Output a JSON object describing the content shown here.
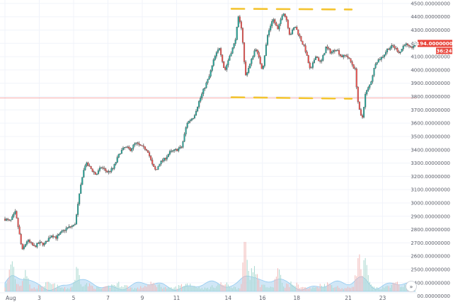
{
  "chart_data": {
    "type": "candlestick",
    "y_axis": {
      "range": [
        2320,
        4520
      ],
      "ticks": [
        "4500.00000000",
        "4400.00000000",
        "4300.00000000",
        "4200.00000000",
        "4100.00000000",
        "4000.00000000",
        "3900.00000000",
        "3800.00000000",
        "3700.00000000",
        "3600.00000000",
        "3500.00000000",
        "3400.00000000",
        "3300.00000000",
        "3200.00000000",
        "3100.00000000",
        "3000.00000000",
        "2900.00000000",
        "2800.00000000",
        "2700.00000000",
        "2600.00000000",
        "2500.00000000",
        "2400.00000000",
        "2300.00000000"
      ],
      "tick_values": [
        4500,
        4400,
        4300,
        4200,
        4100,
        4000,
        3900,
        3800,
        3700,
        3600,
        3500,
        3400,
        3300,
        3200,
        3100,
        3000,
        2900,
        2800,
        2700,
        2600,
        2500,
        2400,
        2300
      ]
    },
    "x_axis": {
      "ticks": [
        "Aug",
        "3",
        "5",
        "7",
        "9",
        "11",
        "14",
        "16",
        "18",
        "21",
        "23"
      ],
      "day_index": [
        0,
        2,
        4,
        6,
        8,
        10,
        13,
        15,
        17,
        20,
        22
      ],
      "days_span": [
        0,
        24
      ]
    },
    "price_path": [
      [
        0,
        2880
      ],
      [
        0.3,
        2860
      ],
      [
        0.6,
        2930
      ],
      [
        0.8,
        2800
      ],
      [
        1,
        2640
      ],
      [
        1.3,
        2720
      ],
      [
        1.7,
        2670
      ],
      [
        2,
        2700
      ],
      [
        2.3,
        2690
      ],
      [
        2.7,
        2760
      ],
      [
        3,
        2740
      ],
      [
        3.3,
        2780
      ],
      [
        3.6,
        2810
      ],
      [
        4,
        2830
      ],
      [
        4.1,
        2850
      ],
      [
        4.3,
        3030
      ],
      [
        4.5,
        3200
      ],
      [
        4.7,
        3300
      ],
      [
        5,
        3260
      ],
      [
        5.3,
        3210
      ],
      [
        5.6,
        3270
      ],
      [
        6,
        3230
      ],
      [
        6.3,
        3260
      ],
      [
        6.7,
        3380
      ],
      [
        7,
        3420
      ],
      [
        7.3,
        3400
      ],
      [
        7.6,
        3450
      ],
      [
        8,
        3420
      ],
      [
        8.3,
        3400
      ],
      [
        8.6,
        3280
      ],
      [
        8.8,
        3240
      ],
      [
        9,
        3300
      ],
      [
        9.3,
        3330
      ],
      [
        9.6,
        3380
      ],
      [
        10,
        3400
      ],
      [
        10.3,
        3420
      ],
      [
        10.6,
        3600
      ],
      [
        11,
        3650
      ],
      [
        11.3,
        3760
      ],
      [
        11.6,
        3860
      ],
      [
        11.9,
        3950
      ],
      [
        12.2,
        4090
      ],
      [
        12.5,
        4170
      ],
      [
        12.8,
        3990
      ],
      [
        13.1,
        4110
      ],
      [
        13.4,
        4210
      ],
      [
        13.6,
        4390
      ],
      [
        13.8,
        4310
      ],
      [
        14,
        3950
      ],
      [
        14.3,
        4050
      ],
      [
        14.6,
        4170
      ],
      [
        15,
        4000
      ],
      [
        15.3,
        4260
      ],
      [
        15.6,
        4390
      ],
      [
        15.9,
        4300
      ],
      [
        16.2,
        4440
      ],
      [
        16.4,
        4380
      ],
      [
        16.6,
        4260
      ],
      [
        16.9,
        4330
      ],
      [
        17.2,
        4240
      ],
      [
        17.5,
        4150
      ],
      [
        17.8,
        3990
      ],
      [
        18.1,
        4110
      ],
      [
        18.4,
        4050
      ],
      [
        18.7,
        4170
      ],
      [
        19,
        4130
      ],
      [
        19.3,
        4160
      ],
      [
        19.6,
        4100
      ],
      [
        19.9,
        4110
      ],
      [
        20.2,
        4050
      ],
      [
        20.4,
        4000
      ],
      [
        20.6,
        3720
      ],
      [
        20.8,
        3620
      ],
      [
        21,
        3820
      ],
      [
        21.3,
        3900
      ],
      [
        21.6,
        4060
      ],
      [
        22,
        4100
      ],
      [
        22.3,
        4160
      ],
      [
        22.6,
        4180
      ],
      [
        23,
        4130
      ],
      [
        23.3,
        4200
      ],
      [
        23.6,
        4160
      ],
      [
        23.9,
        4194
      ]
    ],
    "volume_peaks": [
      {
        "day": 0.4,
        "value": 0.55
      },
      {
        "day": 1.2,
        "value": 0.45
      },
      {
        "day": 4.2,
        "value": 0.35
      },
      {
        "day": 14.0,
        "value": 1.0
      },
      {
        "day": 14.5,
        "value": 0.65
      },
      {
        "day": 15.9,
        "value": 0.45
      },
      {
        "day": 20.6,
        "value": 0.55
      },
      {
        "day": 21.0,
        "value": 0.45
      }
    ],
    "annotations": {
      "resistance_level": 4460,
      "support_level": 3800,
      "horizontal_line": 3790,
      "range_start_day": 13.2,
      "range_end_day": 20.2
    },
    "last_price": "4194.00000000",
    "last_price_value": 4194,
    "countdown": "36:24"
  },
  "controls": {
    "scroll_icon": "double-chevron-right-icon"
  },
  "colors": {
    "up": "#26a69a",
    "down": "#ef5350",
    "wick": "#444444",
    "volume": "#7ec0ee",
    "volume_area": "#c9e3f6",
    "annotation": "#f4c430",
    "hline": "#f4a0a0",
    "badge": "#e8443a",
    "grid": "#f0f3fa"
  }
}
